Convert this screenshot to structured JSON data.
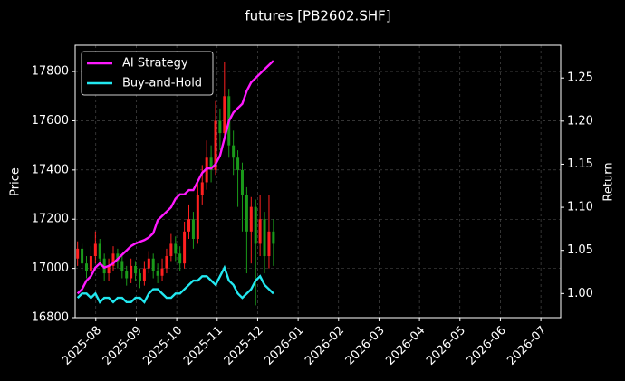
{
  "chart_data": {
    "type": "candlestick",
    "title": "futures [PB2602.SHF]",
    "ylabel": "Price",
    "y2label": "Return",
    "xlim": [
      -0.51,
      11.49
    ],
    "xticks": [
      {
        "value": 0,
        "label": "2025-08"
      },
      {
        "value": 1,
        "label": "2025-09"
      },
      {
        "value": 2,
        "label": "2025-10"
      },
      {
        "value": 3,
        "label": "2025-11"
      },
      {
        "value": 4,
        "label": "2025-12"
      },
      {
        "value": 5,
        "label": "2026-01"
      },
      {
        "value": 6,
        "label": "2026-02"
      },
      {
        "value": 7,
        "label": "2026-03"
      },
      {
        "value": 8,
        "label": "2026-04"
      },
      {
        "value": 9,
        "label": "2026-05"
      },
      {
        "value": 10,
        "label": "2026-06"
      },
      {
        "value": 11,
        "label": "2026-07"
      }
    ],
    "ylim": [
      16800,
      17907
    ],
    "yticks": [
      16800,
      17000,
      17200,
      17400,
      17600,
      17800
    ],
    "y2lim": [
      0.972,
      1.288
    ],
    "y2ticks": [
      {
        "value": 1.0,
        "label": "1.00"
      },
      1.05,
      {
        "value": 1.1,
        "label": "1.10"
      },
      1.15,
      {
        "value": 1.2,
        "label": "1.20"
      },
      1.25
    ],
    "grid": true,
    "legend": "upper left",
    "up_color": "#ff2020",
    "down_color": "#1a9a1a",
    "x": [
      -0.45,
      -0.34,
      -0.23,
      -0.12,
      -0.01,
      0.1,
      0.21,
      0.32,
      0.43,
      0.54,
      0.65,
      0.76,
      0.87,
      0.98,
      1.09,
      1.2,
      1.31,
      1.42,
      1.53,
      1.64,
      1.75,
      1.86,
      1.97,
      2.08,
      2.19,
      2.3,
      2.41,
      2.52,
      2.63,
      2.74,
      2.85,
      2.96,
      3.07,
      3.18,
      3.29,
      3.4,
      3.51,
      3.62,
      3.73,
      3.84,
      3.95,
      4.06,
      4.17,
      4.28,
      4.39
    ],
    "open": [
      17040,
      17080,
      17020,
      16990,
      17050,
      17100,
      17040,
      16980,
      17010,
      17060,
      17030,
      16990,
      16960,
      17010,
      16980,
      16950,
      17000,
      17040,
      16990,
      16970,
      17000,
      17050,
      17100,
      17060,
      17020,
      17150,
      17200,
      17120,
      17300,
      17350,
      17450,
      17400,
      17600,
      17550,
      17700,
      17500,
      17450,
      17400,
      17300,
      17150,
      17250,
      17100,
      17200,
      17050,
      17150
    ],
    "high": [
      17110,
      17100,
      17050,
      17090,
      17150,
      17120,
      17060,
      17040,
      17090,
      17080,
      17050,
      17010,
      17040,
      17030,
      17000,
      17030,
      17070,
      17060,
      17020,
      17040,
      17080,
      17140,
      17130,
      17090,
      17190,
      17260,
      17230,
      17350,
      17420,
      17520,
      17500,
      17680,
      17650,
      17840,
      17730,
      17560,
      17480,
      17430,
      17330,
      17290,
      17280,
      17300,
      17230,
      17300,
      17200
    ],
    "low": [
      17010,
      16990,
      16960,
      16970,
      17020,
      17010,
      16950,
      16950,
      16990,
      17000,
      16960,
      16930,
      16940,
      16950,
      16920,
      16930,
      16980,
      16960,
      16940,
      16950,
      16980,
      17030,
      17030,
      16990,
      17000,
      17120,
      17080,
      17100,
      17260,
      17320,
      17350,
      17380,
      17480,
      17520,
      17450,
      17380,
      17250,
      17150,
      16980,
      17020,
      16850,
      17050,
      16980,
      17000,
      17010
    ],
    "close": [
      17080,
      17020,
      16990,
      17050,
      17100,
      17040,
      16980,
      17010,
      17060,
      17030,
      16990,
      16960,
      17010,
      16980,
      16950,
      17000,
      17040,
      16990,
      16970,
      17000,
      17050,
      17100,
      17060,
      17020,
      17150,
      17200,
      17120,
      17300,
      17350,
      17450,
      17400,
      17600,
      17550,
      17700,
      17500,
      17450,
      17400,
      17300,
      17150,
      17250,
      17100,
      17200,
      17050,
      17150,
      17100
    ],
    "series": [
      {
        "name": "AI Strategy",
        "color": "#ff1aff",
        "axis": "y2",
        "values": [
          1.0,
          1.005,
          1.015,
          1.02,
          1.03,
          1.035,
          1.03,
          1.032,
          1.035,
          1.04,
          1.045,
          1.05,
          1.055,
          1.058,
          1.06,
          1.062,
          1.065,
          1.07,
          1.085,
          1.09,
          1.095,
          1.1,
          1.11,
          1.115,
          1.115,
          1.12,
          1.12,
          1.13,
          1.14,
          1.145,
          1.145,
          1.15,
          1.16,
          1.18,
          1.2,
          1.21,
          1.215,
          1.22,
          1.235,
          1.245,
          1.25,
          1.255,
          1.26,
          1.265,
          1.27
        ]
      },
      {
        "name": "Buy-and-Hold",
        "color": "#22e8f0",
        "axis": "y2",
        "values": [
          0.995,
          1.0,
          1.0,
          0.995,
          1.0,
          0.99,
          0.995,
          0.995,
          0.99,
          0.995,
          0.995,
          0.99,
          0.99,
          0.995,
          0.995,
          0.99,
          1.0,
          1.005,
          1.005,
          1.0,
          0.995,
          0.995,
          1.0,
          1.0,
          1.005,
          1.01,
          1.015,
          1.015,
          1.02,
          1.02,
          1.015,
          1.01,
          1.02,
          1.03,
          1.015,
          1.01,
          1.0,
          0.995,
          1.0,
          1.005,
          1.015,
          1.02,
          1.01,
          1.005,
          1.0
        ]
      }
    ]
  }
}
